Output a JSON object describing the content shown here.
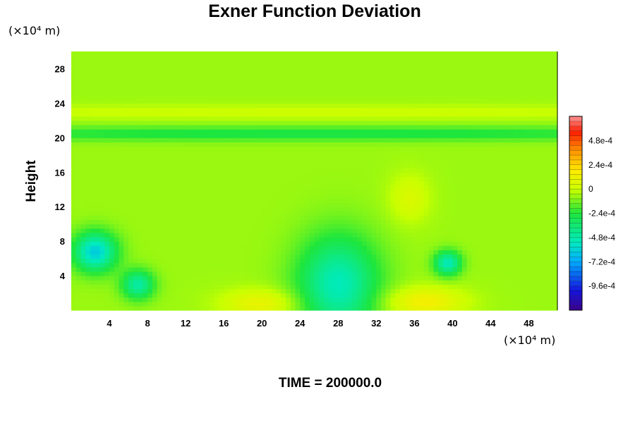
{
  "chart_data": {
    "type": "heatmap",
    "title": "Exner Function Deviation",
    "ylabel": "Height",
    "y_unit": "(×10⁴ m)",
    "x_unit": "(×10⁴ m)",
    "xlim": [
      0,
      51
    ],
    "ylim": [
      0,
      30
    ],
    "x_ticks": [
      "4",
      "8",
      "12",
      "16",
      "20",
      "24",
      "28",
      "32",
      "36",
      "40",
      "44",
      "48"
    ],
    "y_ticks": [
      "4",
      "8",
      "12",
      "16",
      "20",
      "24",
      "28"
    ],
    "x_tick_values": [
      4,
      8,
      12,
      16,
      20,
      24,
      28,
      32,
      36,
      40,
      44,
      48
    ],
    "y_tick_values": [
      4,
      8,
      12,
      16,
      20,
      24,
      28
    ],
    "background_value": -7e-05,
    "features": [
      {
        "x": 25,
        "y": 20.5,
        "sx": 40,
        "sy": 0.6,
        "value": -0.0002
      },
      {
        "x": 25,
        "y": 23,
        "sx": 40,
        "sy": 0.6,
        "value": 8e-05
      },
      {
        "x": 28,
        "y": 3,
        "sx": 3,
        "sy": 4,
        "value": -0.00045
      },
      {
        "x": 2.5,
        "y": 6.8,
        "sx": 1.6,
        "sy": 1.6,
        "value": -0.00055
      },
      {
        "x": 7,
        "y": 3,
        "sx": 1.2,
        "sy": 1.2,
        "value": -0.0004
      },
      {
        "x": 39.5,
        "y": 5.5,
        "sx": 1,
        "sy": 1,
        "value": -0.00045
      },
      {
        "x": 37,
        "y": 1,
        "sx": 3,
        "sy": 1.2,
        "value": 0.00022
      },
      {
        "x": 20,
        "y": 0.8,
        "sx": 3,
        "sy": 1.2,
        "value": 0.00018
      },
      {
        "x": 35.5,
        "y": 13,
        "sx": 1.5,
        "sy": 2,
        "value": 0.00012
      }
    ],
    "colorbar": {
      "range": [
        -0.0012,
        0.00072
      ],
      "labels": [
        "4.8e-4",
        "2.4e-4",
        "0",
        "-2.4e-4",
        "-4.8e-4",
        "-7.2e-4",
        "-9.6e-4"
      ],
      "label_values": [
        0.00048,
        0.00024,
        0,
        -0.00024,
        -0.00048,
        -0.00072,
        -0.00096
      ]
    }
  },
  "footer": {
    "time_label": "TIME = 200000.0"
  }
}
